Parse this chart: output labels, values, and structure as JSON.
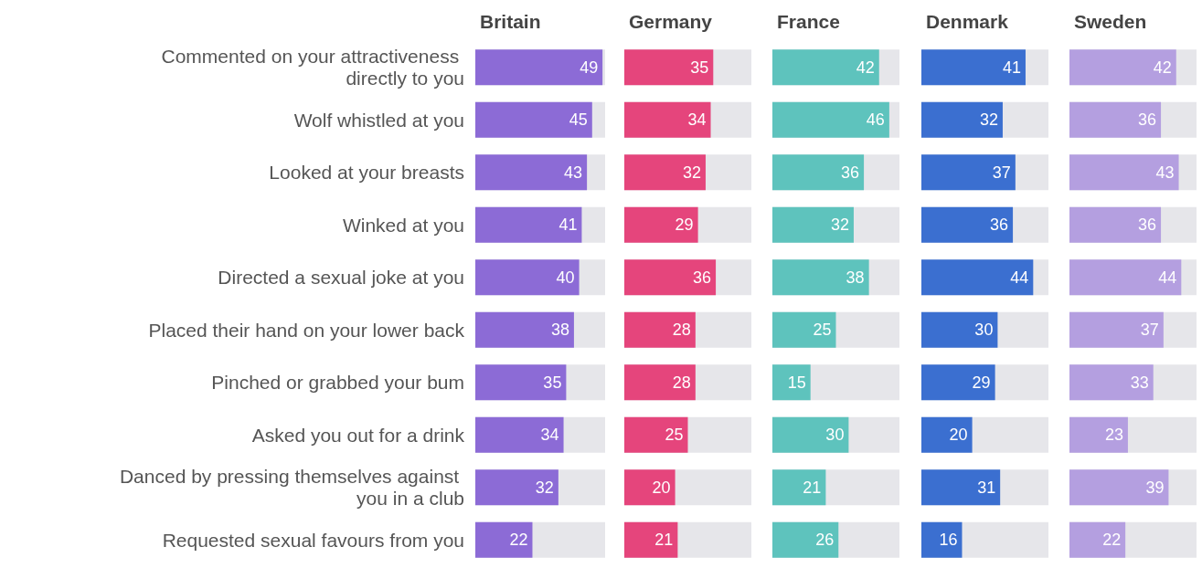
{
  "chart_data": [
    {
      "type": "bar",
      "orientation": "horizontal",
      "title": "Britain",
      "categories": [
        "Commented on your attractiveness directly to you",
        "Wolf whistled at you",
        "Looked at your breasts",
        "Winked at you",
        "Directed a sexual joke at you",
        "Placed their hand on your lower back",
        "Pinched or grabbed your bum",
        "Asked you out for a drink",
        "Danced by pressing themselves against you in a club",
        "Requested sexual favours from you"
      ],
      "values": [
        49,
        45,
        43,
        41,
        40,
        38,
        35,
        34,
        32,
        22
      ],
      "color": "#8c6bd6",
      "xlim": [
        0,
        50
      ],
      "tick_labels": "y",
      "data_labels": true
    },
    {
      "type": "bar",
      "orientation": "horizontal",
      "title": "Germany",
      "categories": [
        null,
        null,
        null,
        null,
        null,
        null,
        null,
        null,
        null,
        null
      ],
      "values": [
        35,
        34,
        32,
        29,
        36,
        28,
        28,
        25,
        20,
        21
      ],
      "color": "#e5457c",
      "xlim": [
        0,
        50
      ],
      "tick_labels": false,
      "data_labels": true
    },
    {
      "type": "bar",
      "orientation": "horizontal",
      "title": "France",
      "categories": [
        null,
        null,
        null,
        null,
        null,
        null,
        null,
        null,
        null,
        null
      ],
      "values": [
        42,
        46,
        36,
        32,
        38,
        25,
        15,
        30,
        21,
        26
      ],
      "color": "#5ec3bd",
      "xlim": [
        0,
        50
      ],
      "tick_labels": false,
      "data_labels": true
    },
    {
      "type": "bar",
      "orientation": "horizontal",
      "title": "Denmark",
      "categories": [
        null,
        null,
        null,
        null,
        null,
        null,
        null,
        null,
        null,
        null
      ],
      "values": [
        41,
        32,
        37,
        36,
        44,
        30,
        29,
        20,
        31,
        16
      ],
      "color": "#3b6fd0",
      "xlim": [
        0,
        50
      ],
      "tick_labels": false,
      "data_labels": true
    },
    {
      "type": "bar",
      "orientation": "horizontal",
      "title": "Sweden",
      "categories": [
        null,
        null,
        null,
        null,
        null,
        null,
        null,
        null,
        null,
        null
      ],
      "values": [
        42,
        36,
        43,
        36,
        44,
        37,
        33,
        23,
        39,
        22
      ],
      "color": "#b49fe0",
      "xlim": [
        0,
        50
      ],
      "tick_labels": false,
      "data_labels": true
    }
  ]
}
